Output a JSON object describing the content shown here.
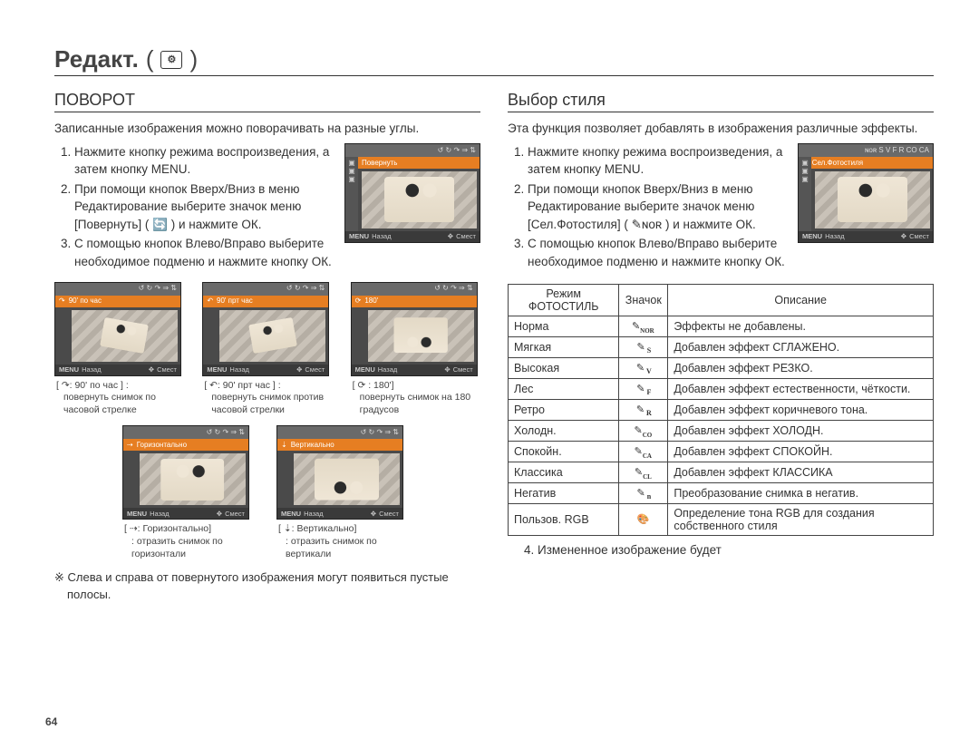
{
  "title": "Редакт.",
  "title_icon_name": "edit-gear-icon",
  "page_number": "64",
  "left": {
    "heading": "ПОВОРОТ",
    "lead": "Записанные изображения можно поворачивать на разные углы.",
    "steps": [
      "Нажмите кнопку режима воспроизведения, а затем кнопку MENU.",
      "При помощи кнопок Вверх/Вниз в меню Редактирование выберите значок меню [Повернуть] ( 🔄 ) и нажмите ОК.",
      "С помощью кнопок Влево/Вправо выберите необходимое подменю и нажмите кнопку ОК."
    ],
    "cam_main": {
      "titlebar": "Повернуть",
      "back": "Назад",
      "move": "Смест"
    },
    "thumbs_row1": [
      {
        "bar": "90' по час",
        "label": "[ ↷: 90' по час ] :",
        "sub": "повернуть снимок по часовой стрелке"
      },
      {
        "bar": "90' прт час",
        "label": "[ ↶: 90' прт час ] :",
        "sub": "повернуть снимок против часовой стрелки"
      },
      {
        "bar": "180'",
        "label": "[ ⟳ : 180']",
        "sub": "повернуть снимок на 180 градусов"
      }
    ],
    "thumbs_row2": [
      {
        "bar": "Горизонтально",
        "label": "[ ⇢: Горизонтально]",
        "sub": ": отразить снимок по горизонтали"
      },
      {
        "bar": "Вертикально",
        "label": "[ ⇣: Вертикально]",
        "sub": ": отразить снимок по вертикали"
      }
    ],
    "footnote": "※ Слева и справа от повернутого изображения могут появиться пустые полосы."
  },
  "right": {
    "heading": "Выбор стиля",
    "lead": "Эта функция позволяет добавлять в изображения различные эффекты.",
    "steps": [
      "Нажмите кнопку режима воспроизведения, а затем кнопку MENU.",
      "При помощи кнопок Вверх/Вниз в меню Редактирование выберите значок меню [Сел.Фотостиля] ( ✎ɴᴏʀ ) и нажмите ОК.",
      "С помощью кнопок Влево/Вправо выберите необходимое подменю и нажмите кнопку ОК."
    ],
    "cam_main": {
      "titlebar": "Сел.Фотостиля",
      "back": "Назад",
      "move": "Смест"
    },
    "table": {
      "headers": [
        "Режим ФОТОСТИЛЬ",
        "Значок",
        "Описание"
      ],
      "rows": [
        {
          "mode": "Норма",
          "icon_sub": "NOR",
          "desc": "Эффекты не добавлены."
        },
        {
          "mode": "Мягкая",
          "icon_sub": "S",
          "desc": "Добавлен эффект СГЛАЖЕНО."
        },
        {
          "mode": "Высокая",
          "icon_sub": "V",
          "desc": "Добавлен эффект РЕЗКО."
        },
        {
          "mode": "Лес",
          "icon_sub": "F",
          "desc": "Добавлен эффект естественности, чёткости."
        },
        {
          "mode": "Ретро",
          "icon_sub": "R",
          "desc": "Добавлен эффект коричневого тона."
        },
        {
          "mode": "Холодн.",
          "icon_sub": "CO",
          "desc": "Добавлен эффект ХОЛОДН."
        },
        {
          "mode": "Спокойн.",
          "icon_sub": "CA",
          "desc": "Добавлен эффект СПОКОЙН."
        },
        {
          "mode": "Классика",
          "icon_sub": "CL",
          "desc": "Добавлен эффект КЛАССИКА"
        },
        {
          "mode": "Негатив",
          "icon_sub": "n",
          "desc": "Преобразование снимка в негатив."
        },
        {
          "mode": "Пользов. RGB",
          "icon_sub": "",
          "icon_palette": true,
          "desc": "Определение тона RGB для создания собственного стиля"
        }
      ]
    },
    "after": "4. Измененное изображение будет"
  },
  "colors": {
    "text": "#333333",
    "rule": "#333333",
    "orange": "#e67e22",
    "cam_bg": "#4a4a4a"
  }
}
